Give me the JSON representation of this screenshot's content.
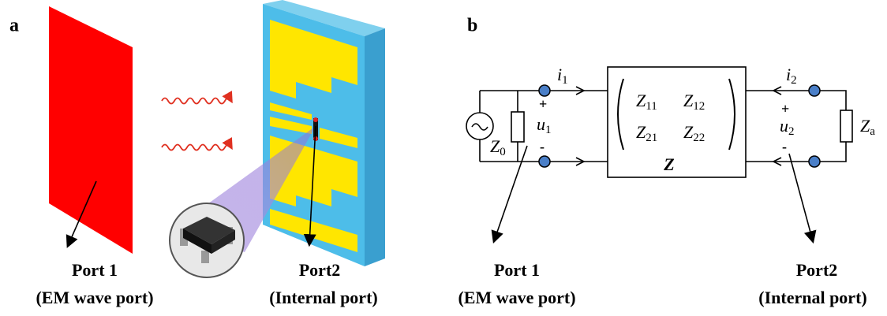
{
  "panel_a": {
    "label": "a",
    "port1": {
      "title": "Port 1",
      "subtitle": "(EM wave port)"
    },
    "port2": {
      "title": "Port2",
      "subtitle": "(Internal port)"
    }
  },
  "panel_b": {
    "label": "b",
    "circuit": {
      "i1": {
        "symbol": "i",
        "subscript": "1"
      },
      "i2": {
        "symbol": "i",
        "subscript": "2"
      },
      "u1": {
        "symbol": "u",
        "subscript": "1"
      },
      "u2": {
        "symbol": "u",
        "subscript": "2"
      },
      "z0": {
        "symbol": "Z",
        "subscript": "0"
      },
      "za": {
        "symbol": "Z",
        "subscript": "a"
      },
      "plus": "+",
      "minus": "-",
      "matrix": [
        [
          {
            "symbol": "Z",
            "subscript": "11"
          },
          {
            "symbol": "Z",
            "subscript": "12"
          }
        ],
        [
          {
            "symbol": "Z",
            "subscript": "21"
          },
          {
            "symbol": "Z",
            "subscript": "22"
          }
        ]
      ],
      "matrix_name": "Z"
    },
    "port1": {
      "title": "Port 1",
      "subtitle": "(EM wave port)"
    },
    "port2": {
      "title": "Port2",
      "subtitle": "(Internal port)"
    }
  }
}
